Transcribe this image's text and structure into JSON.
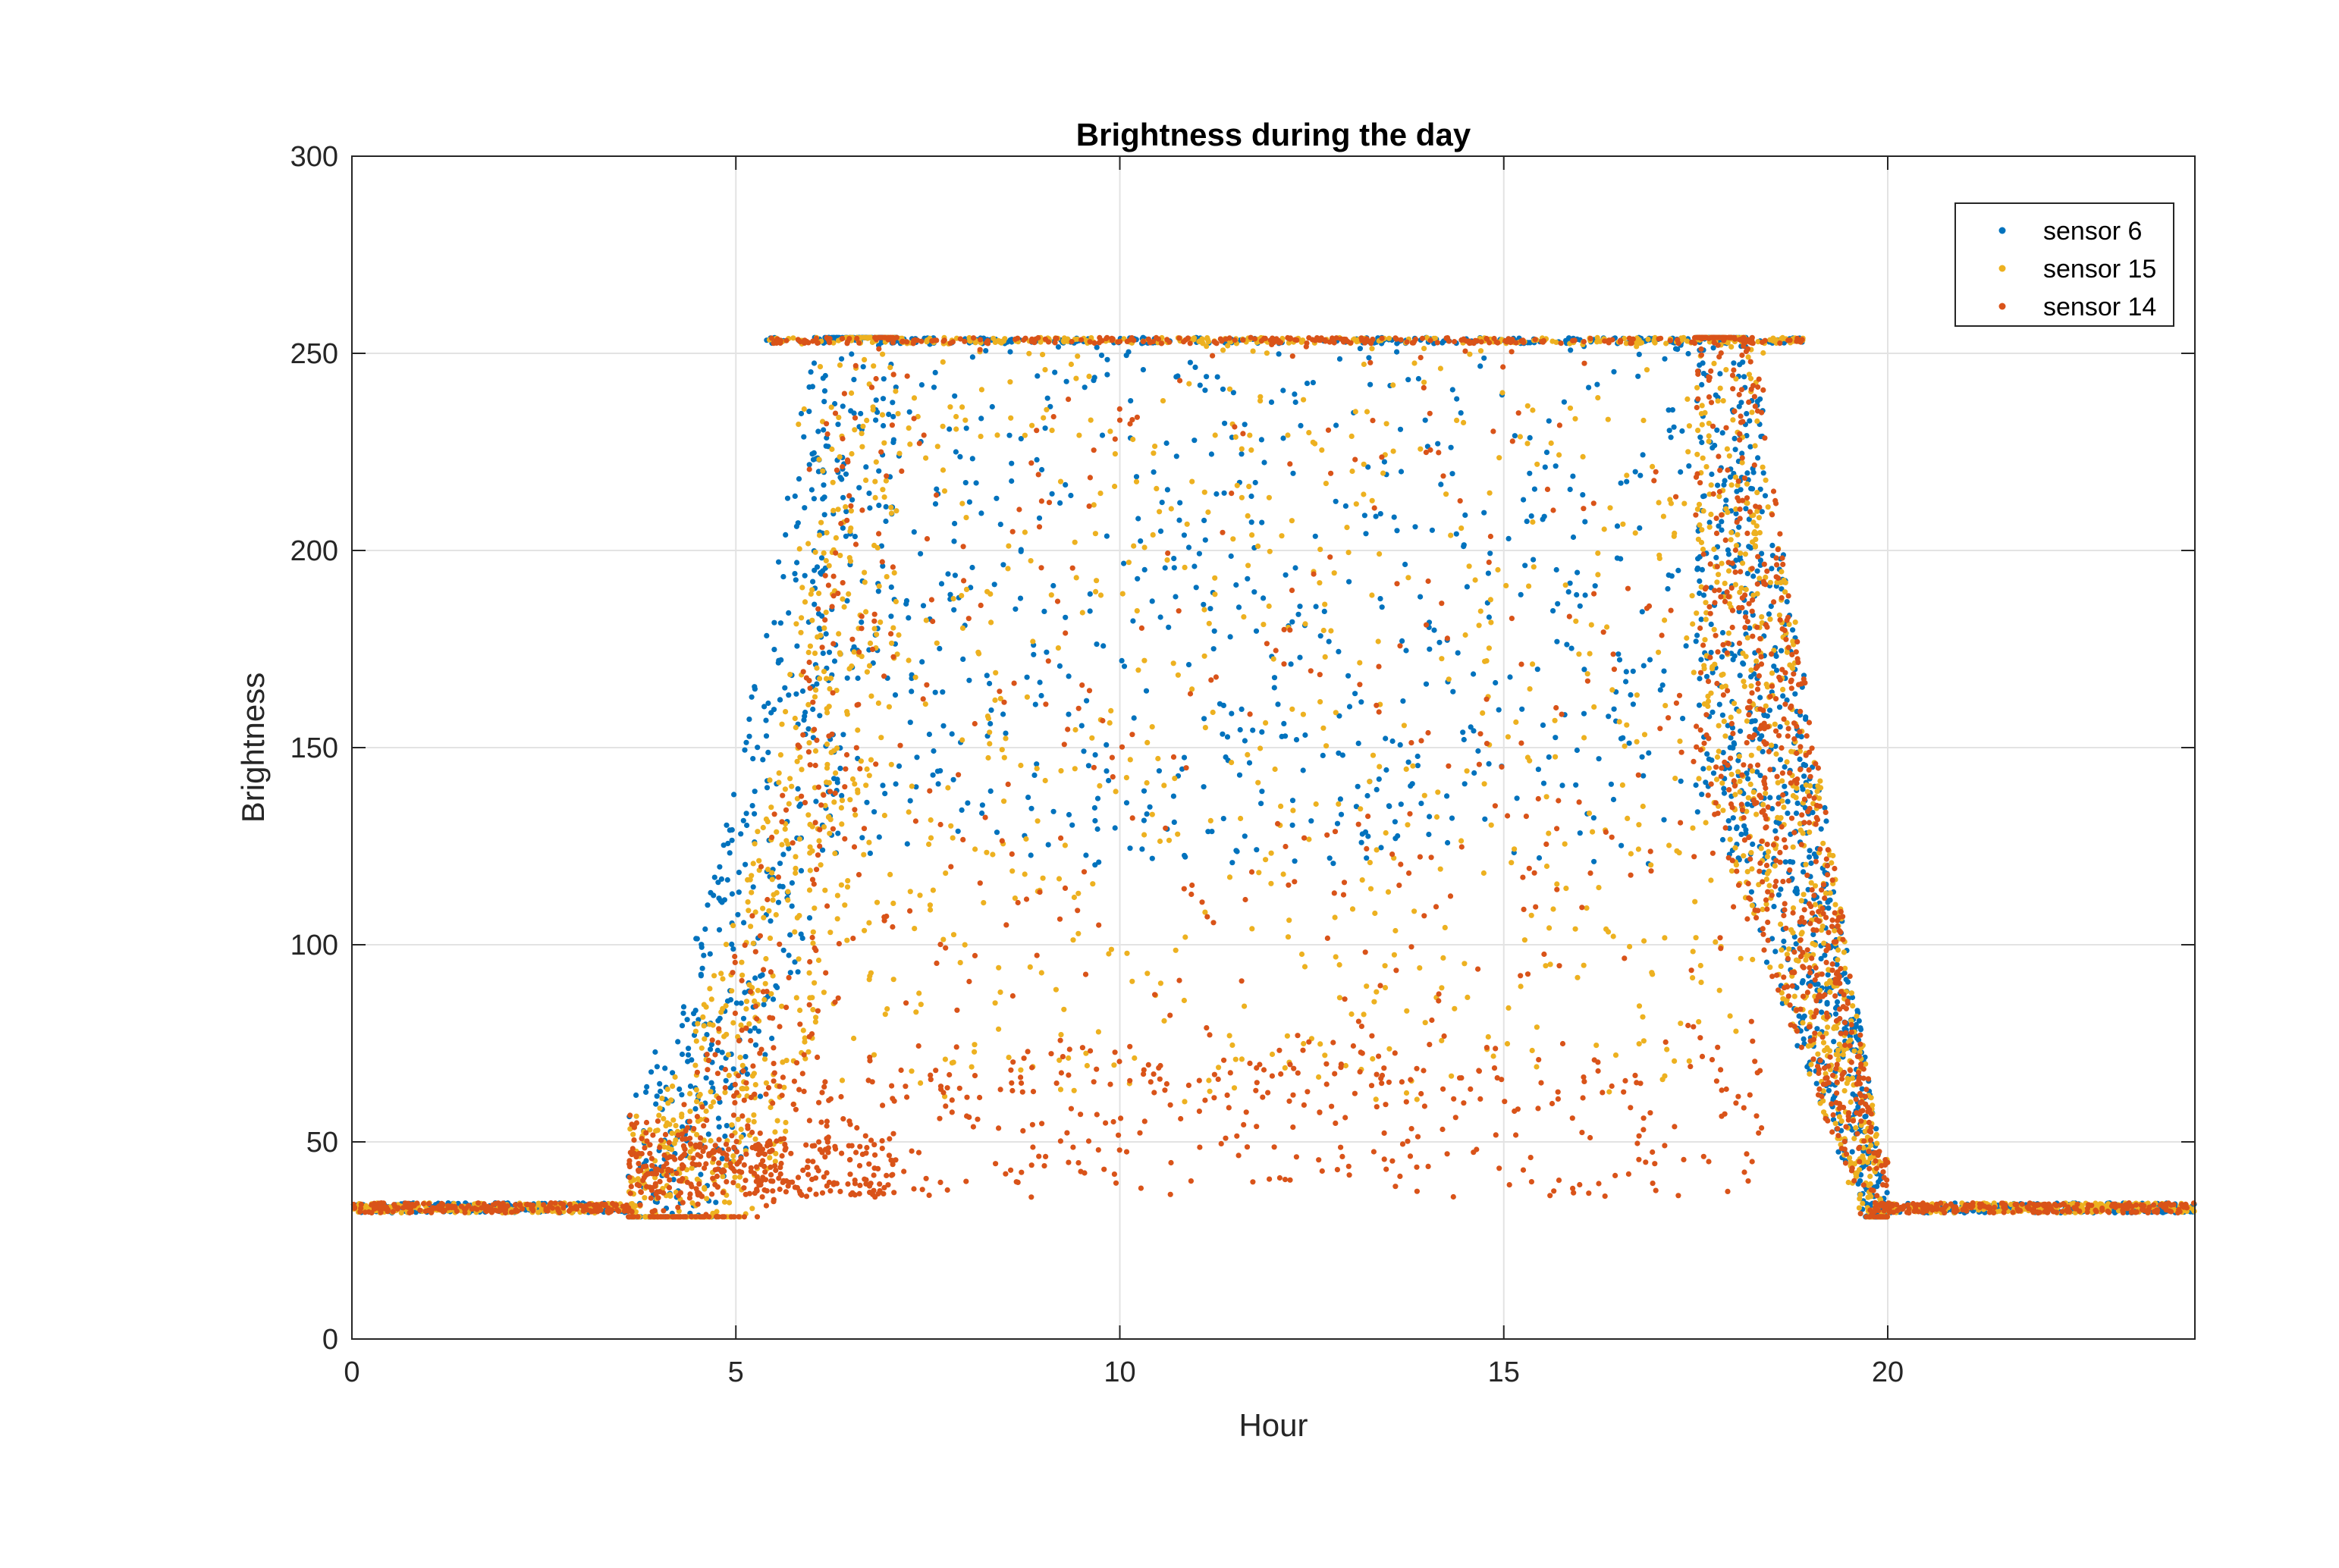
{
  "chart_data": {
    "type": "scatter",
    "title": "Brightness during the day",
    "xlabel": "Hour",
    "ylabel": "Brightness",
    "xlim": [
      0,
      24
    ],
    "ylim": [
      0,
      300
    ],
    "xticks": [
      "0",
      "5",
      "10",
      "15",
      "20"
    ],
    "yticks": [
      "0",
      "50",
      "100",
      "150",
      "200",
      "250",
      "300"
    ],
    "grid": true,
    "legend_position": "top-right",
    "series": [
      {
        "name": "sensor 6",
        "color": "#0072BD"
      },
      {
        "name": "sensor 15",
        "color": "#EDB120"
      },
      {
        "name": "sensor 14",
        "color": "#D95319"
      }
    ],
    "pattern": {
      "night_level": 33,
      "saturation_level": 254,
      "sunrise_hours": [
        3.6,
        6.3
      ],
      "sunset_hours": [
        17.5,
        20.0
      ],
      "points_per_series": 2600
    }
  }
}
